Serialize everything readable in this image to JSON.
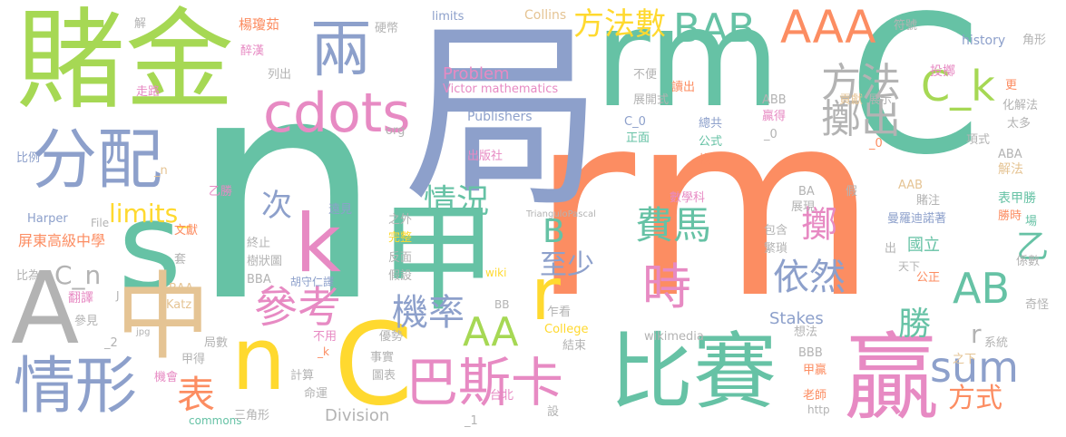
{
  "palette": {
    "green": "#a6d854",
    "orange": "#fc8d62",
    "teal": "#66c2a5",
    "blue": "#8da0cb",
    "pink": "#e78ac3",
    "yellow": "#ffd92f",
    "tan": "#e5c494",
    "gray": "#b3b3b3"
  },
  "words": [
    {
      "text": "rm",
      "color": "orange"
    },
    {
      "text": "n",
      "color": "teal"
    },
    {
      "text": "局",
      "color": "blue"
    },
    {
      "text": "C",
      "color": "teal"
    },
    {
      "text": "rm",
      "color": "teal"
    },
    {
      "text": "賭金",
      "color": "green"
    },
    {
      "text": "甲",
      "color": "teal"
    },
    {
      "text": "贏",
      "color": "pink"
    },
    {
      "text": "比賽",
      "color": "teal"
    },
    {
      "text": "s",
      "color": "teal"
    },
    {
      "text": "中",
      "color": "tan"
    },
    {
      "text": "A",
      "color": "gray"
    },
    {
      "text": "C",
      "color": "yellow"
    },
    {
      "text": "n",
      "color": "yellow"
    },
    {
      "text": "分配",
      "color": "blue"
    },
    {
      "text": "k",
      "color": "pink"
    },
    {
      "text": "情形",
      "color": "blue"
    },
    {
      "text": "巴斯卡",
      "color": "pink"
    },
    {
      "text": "cdots",
      "color": "pink"
    },
    {
      "text": "兩",
      "color": "blue"
    },
    {
      "text": "AAA",
      "color": "orange"
    },
    {
      "text": "BAB",
      "color": "teal"
    },
    {
      "text": "r",
      "color": "yellow"
    },
    {
      "text": "C_k",
      "color": "green"
    },
    {
      "text": "sum",
      "color": "blue"
    },
    {
      "text": "AB",
      "color": "teal"
    },
    {
      "text": "AA",
      "color": "green"
    },
    {
      "text": "時",
      "color": "pink"
    },
    {
      "text": "方法數",
      "color": "yellow"
    },
    {
      "text": "費馬",
      "color": "teal"
    },
    {
      "text": "參考",
      "color": "pink"
    },
    {
      "text": "機率",
      "color": "blue"
    },
    {
      "text": "表",
      "color": "orange"
    },
    {
      "text": "擲出",
      "color": "gray"
    },
    {
      "text": "方法",
      "color": "gray"
    },
    {
      "text": "依然",
      "color": "blue"
    },
    {
      "text": "情況",
      "color": "teal"
    },
    {
      "text": "方式",
      "color": "orange"
    },
    {
      "text": "擲",
      "color": "pink"
    },
    {
      "text": "勝",
      "color": "teal"
    },
    {
      "text": "B",
      "color": "teal"
    },
    {
      "text": "次",
      "color": "blue"
    },
    {
      "text": "至少",
      "color": "blue"
    },
    {
      "text": "limits_",
      "color": "yellow"
    },
    {
      "text": "C_n",
      "color": "gray"
    },
    {
      "text": "乙",
      "color": "teal"
    },
    {
      "text": "Problem",
      "color": "pink"
    },
    {
      "text": "Stakes",
      "color": "blue"
    },
    {
      "text": "Division",
      "color": "gray"
    },
    {
      "text": "r",
      "color": "gray"
    },
    {
      "text": "Collins",
      "color": "tan"
    },
    {
      "text": "Victor mathematics",
      "color": "pink"
    },
    {
      "text": "Publishers",
      "color": "blue"
    },
    {
      "text": "history",
      "color": "blue"
    },
    {
      "text": "投擲",
      "color": "pink"
    },
    {
      "text": "國立",
      "color": "teal"
    },
    {
      "text": "屏東高級中學",
      "color": "orange"
    },
    {
      "text": "翻譯",
      "color": "pink"
    },
    {
      "text": "解法",
      "color": "tan"
    },
    {
      "text": "表甲勝",
      "color": "teal"
    },
    {
      "text": "曼羅迪諾著",
      "color": "blue"
    },
    {
      "text": "楊瓊茹",
      "color": "orange"
    },
    {
      "text": "醉漢",
      "color": "pink"
    },
    {
      "text": "走路",
      "color": "pink"
    },
    {
      "text": "係數",
      "color": "gray"
    },
    {
      "text": "系統",
      "color": "gray"
    },
    {
      "text": "limits",
      "color": "blue"
    },
    {
      "text": "硬幣",
      "color": "gray"
    },
    {
      "text": "符號",
      "color": "gray"
    },
    {
      "text": "角形",
      "color": "gray"
    },
    {
      "text": "貢獻",
      "color": "tan"
    },
    {
      "text": "展示",
      "color": "gray"
    },
    {
      "text": "不便",
      "color": "gray"
    },
    {
      "text": "展開式",
      "color": "gray"
    },
    {
      "text": "讀出",
      "color": "orange"
    },
    {
      "text": "ABB",
      "color": "gray"
    },
    {
      "text": "贏得",
      "color": "pink"
    },
    {
      "text": "C_0",
      "color": "blue"
    },
    {
      "text": "總共",
      "color": "blue"
    },
    {
      "text": "_0",
      "color": "gray"
    },
    {
      "text": "正面",
      "color": "teal"
    },
    {
      "text": "公式",
      "color": "teal"
    },
    {
      "text": "項式",
      "color": "gray"
    },
    {
      "text": "化解法",
      "color": "gray"
    },
    {
      "text": "太多",
      "color": "gray"
    },
    {
      "text": "出版社",
      "color": "pink"
    },
    {
      "text": "解",
      "color": "gray"
    },
    {
      "text": "比例",
      "color": "blue"
    },
    {
      "text": "列出",
      "color": "gray"
    },
    {
      "text": "org",
      "color": "gray"
    },
    {
      "text": "_n",
      "color": "tan"
    },
    {
      "text": "乙勝",
      "color": "pink"
    },
    {
      "text": "遠見",
      "color": "blue"
    },
    {
      "text": "胡守仁譯",
      "color": "blue"
    },
    {
      "text": "文獻",
      "color": "orange"
    },
    {
      "text": "Harper",
      "color": "blue"
    },
    {
      "text": "File",
      "color": "gray"
    },
    {
      "text": "數學科",
      "color": "pink"
    },
    {
      "text": "TrianguloPascal",
      "color": "gray"
    },
    {
      "text": "之外",
      "color": "gray"
    },
    {
      "text": "完整",
      "color": "yellow"
    },
    {
      "text": "終止",
      "color": "gray"
    },
    {
      "text": "套",
      "color": "gray"
    },
    {
      "text": "比為",
      "color": "gray"
    },
    {
      "text": "BAA",
      "color": "tan"
    },
    {
      "text": "Katz",
      "color": "tan"
    },
    {
      "text": "參見",
      "color": "gray"
    },
    {
      "text": "J",
      "color": "gray"
    },
    {
      "text": "樹狀圖",
      "color": "gray"
    },
    {
      "text": "反面",
      "color": "gray"
    },
    {
      "text": "假設",
      "color": "gray"
    },
    {
      "text": "BBA",
      "color": "gray"
    },
    {
      "text": "wiki",
      "color": "yellow"
    },
    {
      "text": "BB",
      "color": "gray"
    },
    {
      "text": "_2",
      "color": "gray"
    },
    {
      "text": "局數",
      "color": "gray"
    },
    {
      "text": "jpg",
      "color": "gray"
    },
    {
      "text": "乍看",
      "color": "gray"
    },
    {
      "text": "College",
      "color": "yellow"
    },
    {
      "text": "結束",
      "color": "gray"
    },
    {
      "text": "優勢",
      "color": "gray"
    },
    {
      "text": "不用",
      "color": "pink"
    },
    {
      "text": "事實",
      "color": "gray"
    },
    {
      "text": "_k",
      "color": "orange"
    },
    {
      "text": "甲得",
      "color": "gray"
    },
    {
      "text": "機會",
      "color": "pink"
    },
    {
      "text": "計算",
      "color": "gray"
    },
    {
      "text": "命運",
      "color": "gray"
    },
    {
      "text": "圖表",
      "color": "gray"
    },
    {
      "text": "commons",
      "color": "teal"
    },
    {
      "text": "三角形",
      "color": "gray"
    },
    {
      "text": "_1",
      "color": "gray"
    },
    {
      "text": "台北",
      "color": "pink"
    },
    {
      "text": "設",
      "color": "gray"
    },
    {
      "text": "wikimedia",
      "color": "gray"
    },
    {
      "text": "想法",
      "color": "gray"
    },
    {
      "text": "BBB",
      "color": "gray"
    },
    {
      "text": "甲贏",
      "color": "orange"
    },
    {
      "text": "老師",
      "color": "orange"
    },
    {
      "text": "http",
      "color": "gray"
    },
    {
      "text": "之下",
      "color": "tan"
    },
    {
      "text": "奇怪",
      "color": "gray"
    },
    {
      "text": "天下",
      "color": "gray"
    },
    {
      "text": "公正",
      "color": "orange"
    },
    {
      "text": "出",
      "color": "gray"
    },
    {
      "text": "場",
      "color": "teal"
    },
    {
      "text": "勝時",
      "color": "orange"
    },
    {
      "text": "ABA",
      "color": "gray"
    },
    {
      "text": "AAB",
      "color": "tan"
    },
    {
      "text": "賭注",
      "color": "gray"
    },
    {
      "text": "假",
      "color": "gray"
    },
    {
      "text": "展現",
      "color": "gray"
    },
    {
      "text": "包含",
      "color": "gray"
    },
    {
      "text": "繁瑣",
      "color": "gray"
    },
    {
      "text": "BA",
      "color": "gray"
    },
    {
      "text": "枚",
      "color": "orange"
    },
    {
      "text": "_0",
      "color": "orange"
    },
    {
      "text": "更",
      "color": "orange"
    }
  ]
}
